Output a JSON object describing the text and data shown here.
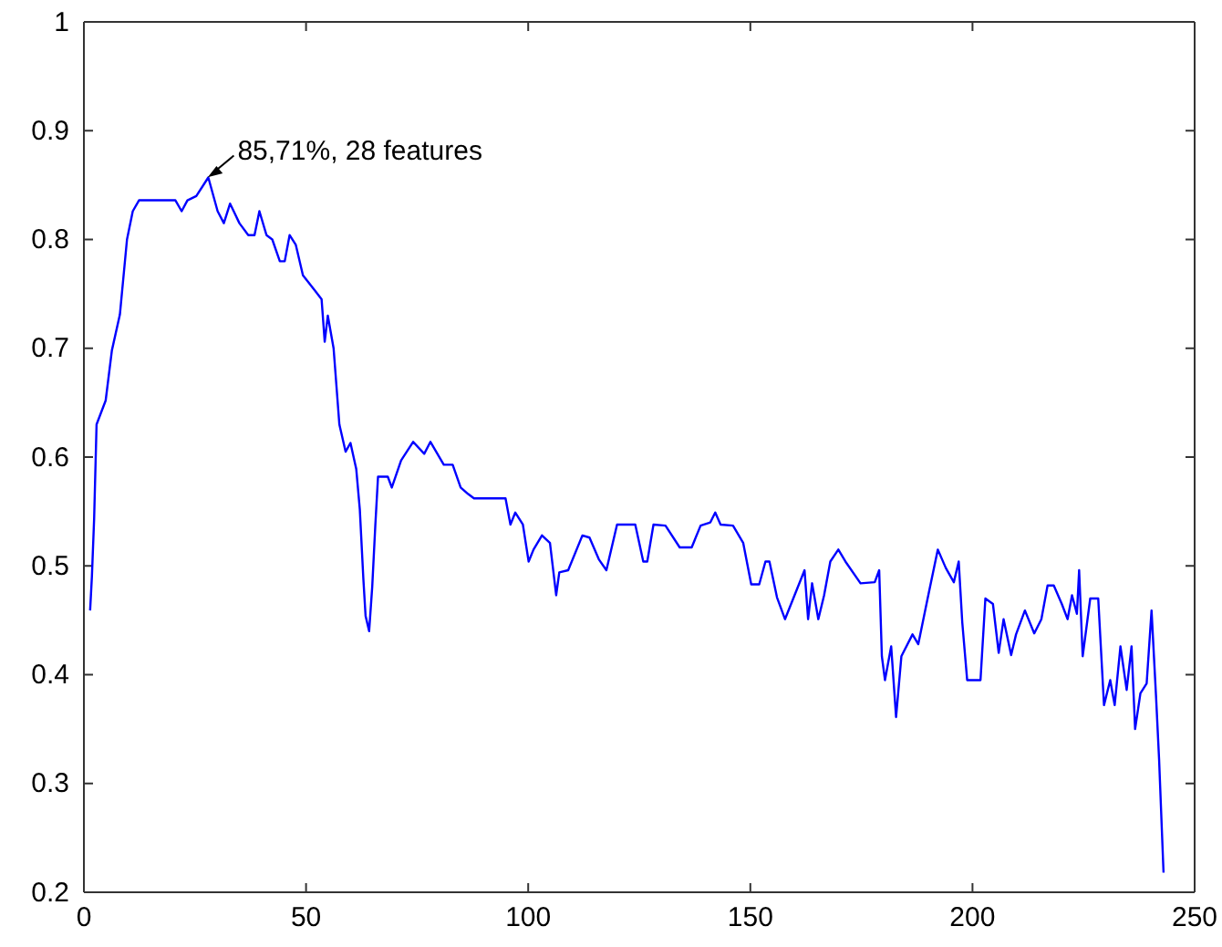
{
  "chart_data": {
    "type": "line",
    "x": [
      1.4,
      1.8,
      2.3,
      2.85,
      4.9,
      6.3,
      8.1,
      9.7,
      11,
      12.4,
      20.6,
      22,
      23.3,
      25.3,
      28,
      30.1,
      31.5,
      32.9,
      35,
      37,
      38.4,
      39.5,
      41.1,
      42.4,
      44.1,
      45.2,
      46.3,
      47.7,
      49.3,
      52,
      53.5,
      54.2,
      54.9,
      56.2,
      57.5,
      58.9,
      60,
      61.3,
      62.1,
      62.9,
      63.4,
      64.2,
      64.9,
      65.6,
      66.2,
      68.4,
      69.3,
      71.4,
      74.1,
      76.6,
      78,
      81,
      83,
      84.8,
      86.5,
      87.8,
      94.9,
      96,
      97.1,
      98.8,
      100.1,
      101.2,
      103.1,
      104.9,
      106.3,
      107,
      109,
      112.2,
      113.8,
      115.9,
      117.6,
      120,
      124.1,
      125.9,
      126.8,
      128.2,
      130.9,
      134.1,
      136.8,
      138.8,
      141,
      142.1,
      143.3,
      146.1,
      148.4,
      150.2,
      152,
      153.4,
      154.3,
      156,
      157.8,
      162.2,
      163,
      163.9,
      165.3,
      166.6,
      168,
      169.8,
      171.4,
      174.8,
      178,
      179,
      179.6,
      180.3,
      181.7,
      182.8,
      184,
      186.5,
      187.8,
      189.9,
      192.2,
      194,
      195.8,
      196.9,
      197.7,
      198.8,
      201.8,
      202.9,
      204.6,
      205.9,
      207,
      208.7,
      209.8,
      211.8,
      213.9,
      215.5,
      216.9,
      218.3,
      220.1,
      221.4,
      222.4,
      223.5,
      224,
      224.8,
      226.5,
      228.3,
      229.6,
      231,
      232,
      233.3,
      234.7,
      235.8,
      236.6,
      237.8,
      239.2,
      240.3,
      241.3,
      242,
      243
    ],
    "series": [
      {
        "color": "#0000ff",
        "values": [
          0.459,
          0.49,
          0.543,
          0.63,
          0.652,
          0.698,
          0.731,
          0.8,
          0.826,
          0.836,
          0.836,
          0.826,
          0.836,
          0.84,
          0.857,
          0.826,
          0.815,
          0.833,
          0.815,
          0.804,
          0.804,
          0.826,
          0.804,
          0.8,
          0.78,
          0.78,
          0.804,
          0.795,
          0.767,
          0.753,
          0.745,
          0.706,
          0.73,
          0.7,
          0.63,
          0.605,
          0.613,
          0.589,
          0.552,
          0.488,
          0.454,
          0.44,
          0.481,
          0.538,
          0.582,
          0.582,
          0.572,
          0.597,
          0.614,
          0.603,
          0.614,
          0.593,
          0.593,
          0.572,
          0.566,
          0.562,
          0.562,
          0.538,
          0.549,
          0.538,
          0.504,
          0.515,
          0.528,
          0.521,
          0.473,
          0.494,
          0.496,
          0.528,
          0.526,
          0.506,
          0.496,
          0.538,
          0.538,
          0.504,
          0.504,
          0.538,
          0.537,
          0.517,
          0.517,
          0.537,
          0.54,
          0.549,
          0.538,
          0.537,
          0.521,
          0.483,
          0.483,
          0.504,
          0.504,
          0.471,
          0.451,
          0.496,
          0.451,
          0.484,
          0.451,
          0.473,
          0.504,
          0.515,
          0.504,
          0.484,
          0.485,
          0.496,
          0.417,
          0.395,
          0.426,
          0.361,
          0.417,
          0.437,
          0.428,
          0.47,
          0.515,
          0.498,
          0.485,
          0.504,
          0.448,
          0.395,
          0.395,
          0.47,
          0.465,
          0.42,
          0.451,
          0.418,
          0.437,
          0.459,
          0.438,
          0.451,
          0.482,
          0.482,
          0.465,
          0.451,
          0.473,
          0.456,
          0.496,
          0.417,
          0.47,
          0.47,
          0.372,
          0.395,
          0.372,
          0.426,
          0.386,
          0.426,
          0.35,
          0.383,
          0.392,
          0.459,
          0.381,
          0.322,
          0.218
        ]
      }
    ],
    "xlim": [
      0,
      250
    ],
    "xticks": [
      0,
      50,
      100,
      150,
      200,
      250
    ],
    "ylim": [
      0.2,
      1
    ],
    "yticks": [
      0.2,
      0.3,
      0.4,
      0.5,
      0.6,
      0.7,
      0.8,
      0.9,
      1
    ],
    "annotations": [
      {
        "text": "85,71%, 28 features",
        "x": 28,
        "y": 0.857
      }
    ],
    "grid": false,
    "marker": "none",
    "line_style": "solid"
  }
}
